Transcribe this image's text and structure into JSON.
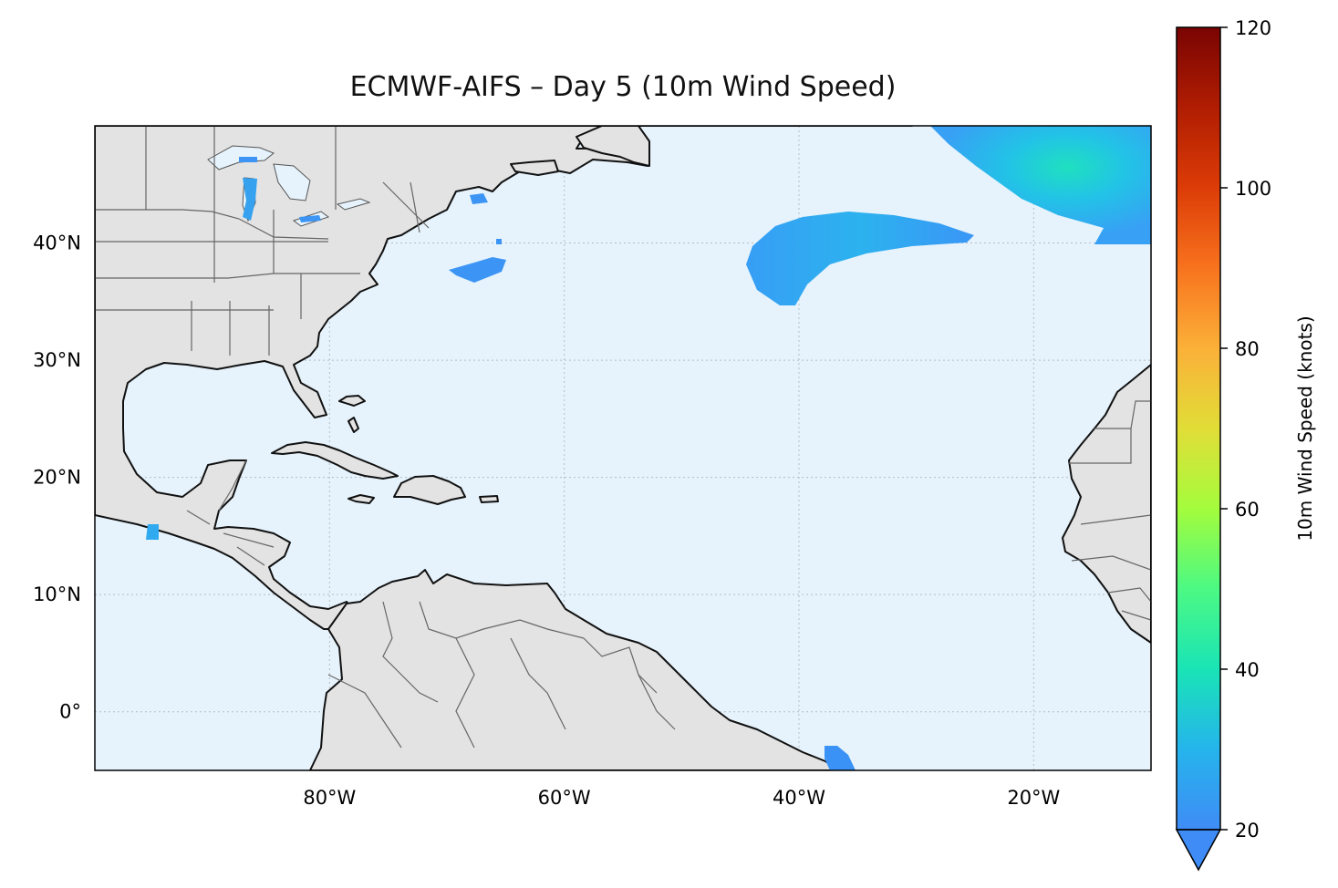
{
  "title": "ECMWF-AIFS – Day 5 (10m Wind Speed)",
  "map": {
    "projection": "PlateCarree",
    "lon_range": [
      -100,
      -10
    ],
    "lat_range": [
      -5,
      50
    ],
    "gridlines": true,
    "x_ticks": [
      {
        "value": -80,
        "label": "80°W"
      },
      {
        "value": -60,
        "label": "60°W"
      },
      {
        "value": -40,
        "label": "40°W"
      },
      {
        "value": -20,
        "label": "20°W"
      }
    ],
    "y_ticks": [
      {
        "value": 40,
        "label": "40°N"
      },
      {
        "value": 30,
        "label": "30°N"
      },
      {
        "value": 20,
        "label": "20°N"
      },
      {
        "value": 10,
        "label": "10°N"
      },
      {
        "value": 0,
        "label": "0°"
      }
    ],
    "colors": {
      "ocean": "#e6f3fc",
      "land": "#e3e3e3",
      "coastline": "#111111",
      "borders": "#666666",
      "grid": "#b7bcc2"
    }
  },
  "colorbar": {
    "label": "10m Wind Speed (knots)",
    "min": 20,
    "max": 120,
    "extend": "min",
    "colormap": "turbo",
    "ticks": [
      {
        "value": 120,
        "label": "120"
      },
      {
        "value": 100,
        "label": "100"
      },
      {
        "value": 80,
        "label": "80"
      },
      {
        "value": 60,
        "label": "60"
      },
      {
        "value": 40,
        "label": "40"
      },
      {
        "value": 20,
        "label": "20"
      }
    ]
  },
  "wind_features": [
    {
      "name": "North Atlantic jet region",
      "speed_knots": 33
    },
    {
      "name": "Mid-Atlantic swirl",
      "speed_knots": 26
    },
    {
      "name": "Offshore patch near Nova Scotia",
      "speed_knots": 22
    },
    {
      "name": "Patch east of Cape Hatteras",
      "speed_knots": 22
    },
    {
      "name": "Patch near NE Brazil",
      "speed_knots": 22
    },
    {
      "name": "Patch off Guatemala coast",
      "speed_knots": 24
    },
    {
      "name": "Lake Michigan",
      "speed_knots": 24
    }
  ]
}
